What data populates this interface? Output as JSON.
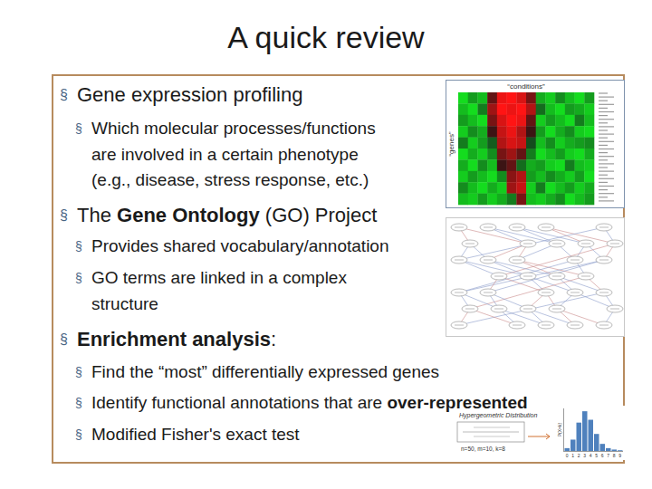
{
  "title": "A quick review",
  "bullet": "§",
  "sections": [
    {
      "heading": [
        {
          "text": "Gene expression profiling",
          "bold": false
        }
      ],
      "items": [
        [
          [
            {
              "text": "Which molecular processes/functions",
              "bold": false
            }
          ],
          [
            {
              "text": "are involved in a certain phenotype",
              "bold": false
            }
          ],
          [
            {
              "text": "(e.g., disease, stress response, etc.)",
              "bold": false
            }
          ]
        ]
      ]
    },
    {
      "heading": [
        {
          "text": "The ",
          "bold": false
        },
        {
          "text": "Gene Ontology",
          "bold": true
        },
        {
          "text": " (GO) Project",
          "bold": false
        }
      ],
      "items": [
        [
          [
            {
              "text": "Provides shared vocabulary/annotation",
              "bold": false
            }
          ]
        ],
        [
          [
            {
              "text": "GO terms are linked in a complex",
              "bold": false
            }
          ],
          [
            {
              "text": "structure",
              "bold": false
            }
          ]
        ]
      ]
    },
    {
      "heading": [
        {
          "text": "Enrichment analysis",
          "bold": true
        },
        {
          "text": ":",
          "bold": false
        }
      ],
      "items": [
        [
          [
            {
              "text": "Find the “most” differentially expressed genes",
              "bold": false
            }
          ]
        ],
        [
          [
            {
              "text": "Identify functional annotations that are ",
              "bold": false
            },
            {
              "text": "over-represented",
              "bold": true
            }
          ]
        ],
        [
          [
            {
              "text": "Modified Fisher's exact test",
              "bold": false
            }
          ]
        ]
      ]
    }
  ],
  "heatmap": {
    "x_label": "“conditions”",
    "y_label": "“genes”",
    "cells": [
      [
        -1,
        -0.6,
        -0.8,
        0.2,
        0.9,
        1,
        0.8,
        0.3,
        -0.7,
        -0.9,
        -0.5,
        -0.8,
        -1,
        -0.6
      ],
      [
        -0.8,
        -1,
        -0.4,
        0.5,
        1,
        0.9,
        1,
        0.6,
        -0.3,
        -0.8,
        -1,
        -0.6,
        -0.7,
        -0.9
      ],
      [
        -0.6,
        -0.8,
        -1,
        0.3,
        0.8,
        1,
        0.9,
        0.2,
        -0.9,
        -0.6,
        -0.8,
        -1,
        -0.4,
        -0.8
      ],
      [
        -0.9,
        -0.5,
        -0.7,
        0,
        0.7,
        0.9,
        0.6,
        0,
        -0.6,
        -1,
        -0.7,
        -0.5,
        -0.9,
        -1
      ],
      [
        -0.4,
        -0.9,
        -0.6,
        -0.2,
        0.6,
        0.8,
        0.7,
        -0.1,
        -0.8,
        -0.5,
        -0.9,
        -0.7,
        -0.6,
        -0.5
      ],
      [
        -1,
        -0.7,
        -0.9,
        -0.5,
        0.3,
        0.5,
        0.2,
        -0.4,
        -1,
        -0.8,
        -0.6,
        -0.9,
        -1,
        -0.7
      ],
      [
        -0.7,
        -1,
        -0.5,
        -0.8,
        0,
        0.2,
        -0.3,
        -0.7,
        -0.6,
        -0.9,
        -1,
        -0.4,
        -0.8,
        -0.9
      ],
      [
        -0.9,
        -0.6,
        -0.8,
        -1,
        -0.5,
        0.4,
        0.6,
        -0.6,
        -0.8,
        -0.5,
        -0.7,
        -0.9,
        -0.6,
        -1
      ],
      [
        -0.5,
        -0.8,
        -1,
        -0.7,
        -0.9,
        0.5,
        0.7,
        -0.9,
        -0.4,
        -1,
        -0.8,
        -0.6,
        -0.9,
        -0.7
      ],
      [
        -0.8,
        -0.9,
        -0.6,
        -0.9,
        -0.7,
        -0.4,
        0.3,
        -0.8,
        -0.9,
        -0.7,
        -0.5,
        -1,
        -0.8,
        -0.6
      ]
    ]
  },
  "hypergeometric": {
    "title": "Hypergeometric Distribution",
    "params": "n=50, m=10, k=8"
  },
  "chart_data": {
    "type": "bar",
    "y_label": "P(X=k)",
    "categories": [
      "0",
      "1",
      "2",
      "3",
      "4",
      "5",
      "6",
      "7",
      "8",
      "9"
    ],
    "values": [
      0.02,
      0.08,
      0.2,
      0.28,
      0.22,
      0.12,
      0.05,
      0.02,
      0.01,
      0.005
    ],
    "color": "#4f81bd",
    "ylim": [
      0,
      0.3
    ],
    "tick_labels": "x"
  }
}
